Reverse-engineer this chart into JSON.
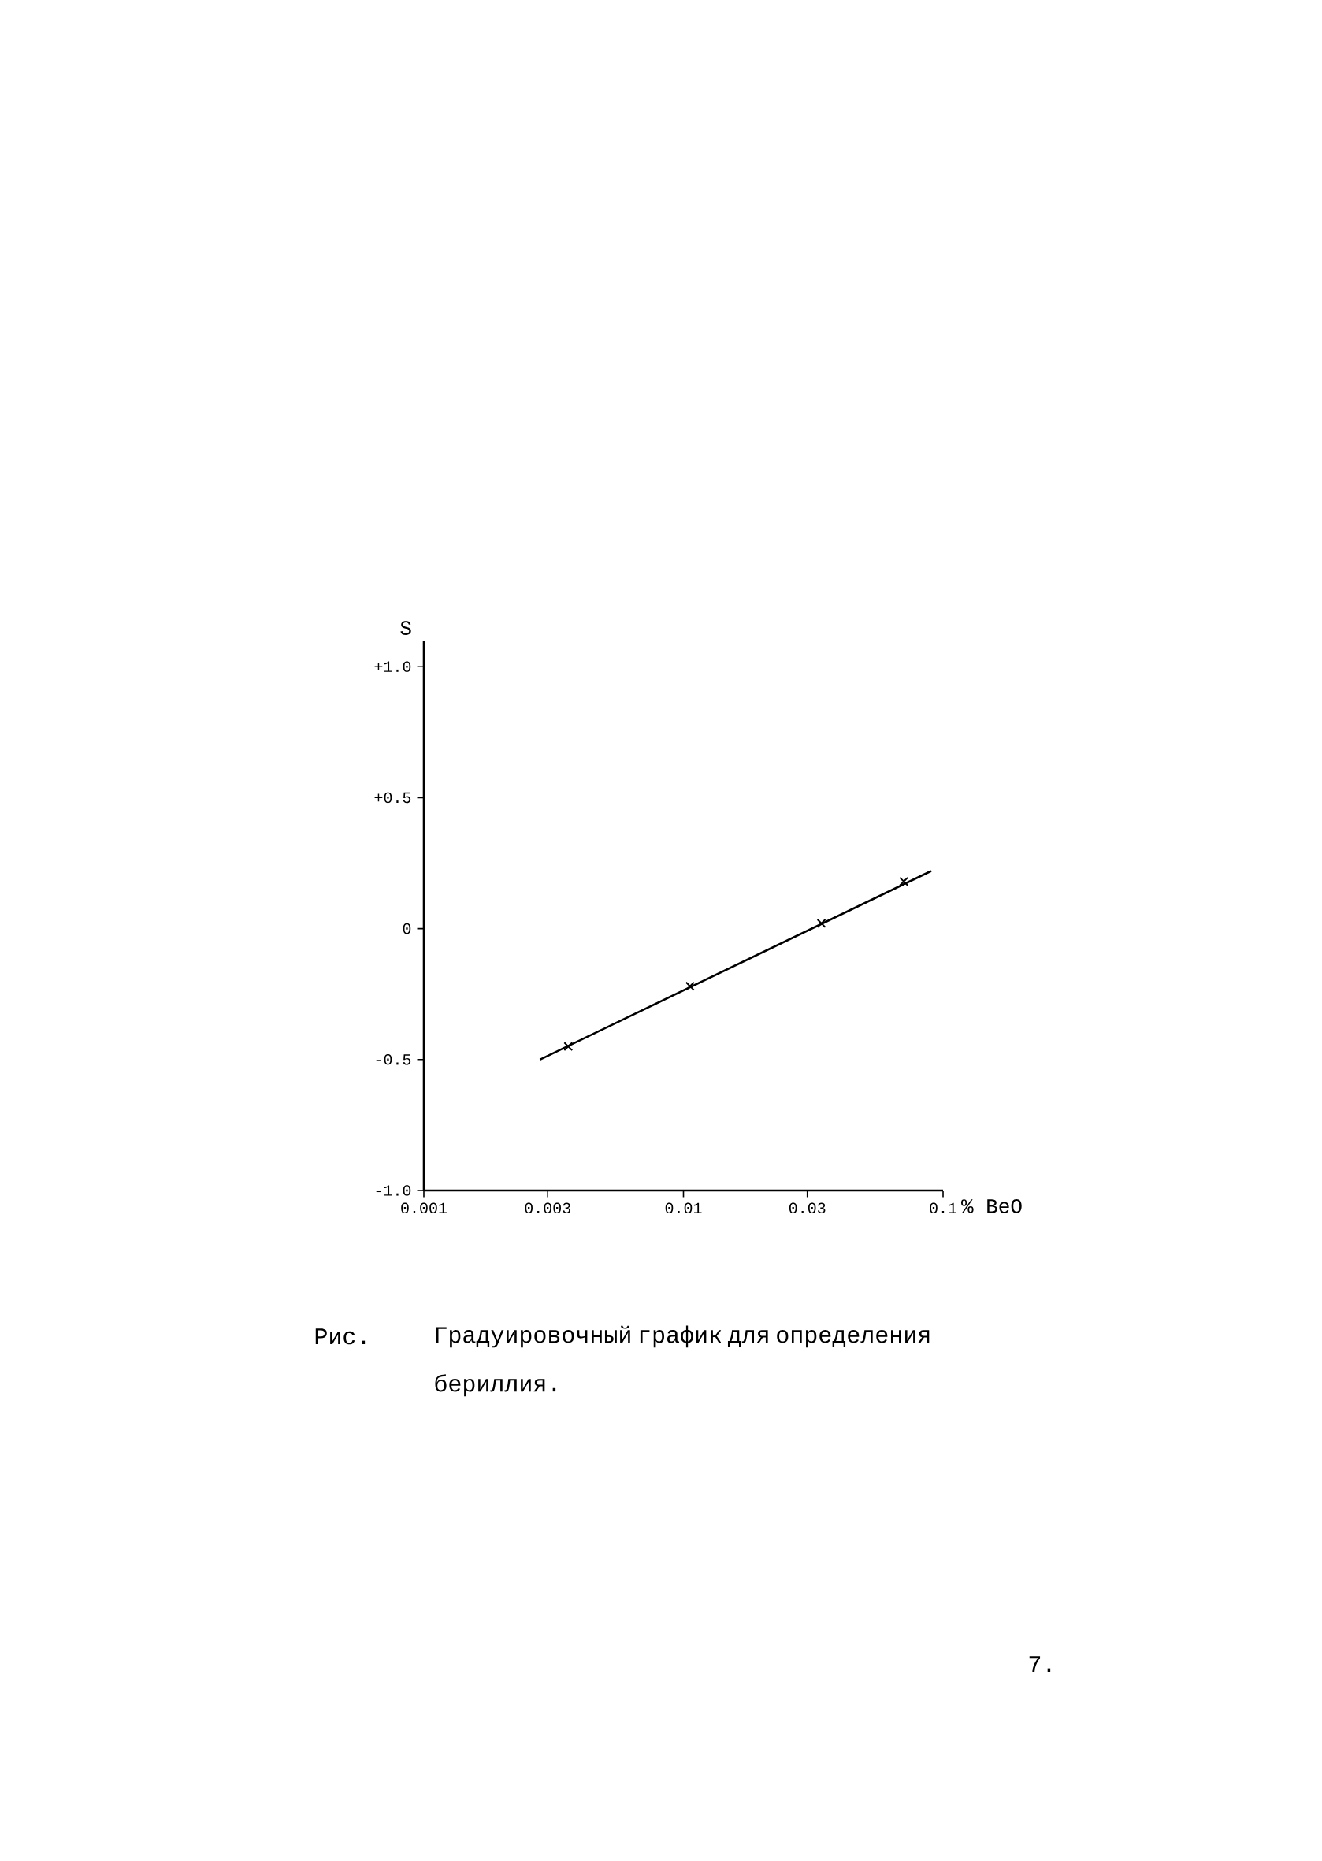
{
  "chart_data": {
    "type": "scatter",
    "xlabel": "% BeO",
    "ylabel": "S",
    "log": "x",
    "marker": "cross",
    "xlim": [
      0.001,
      0.1
    ],
    "ylim": [
      -1.0,
      1.1
    ],
    "xticks": [
      0.001,
      0.003,
      0.01,
      0.03,
      0.1
    ],
    "yticks": [
      {
        "value": -1.0,
        "label": "-1.0"
      },
      {
        "value": -0.5,
        "label": "-0.5"
      },
      {
        "value": 0,
        "label": "0"
      },
      {
        "value": 0.5,
        "label": "+0.5"
      },
      {
        "value": 1.0,
        "label": "+1.0"
      }
    ],
    "series": [
      {
        "type": "line",
        "marker": "none",
        "color": "#000000",
        "x": [
          0.0028,
          0.09
        ],
        "values": [
          -0.5,
          0.22
        ]
      },
      {
        "color": "#000000",
        "x": [
          0.0036,
          0.0106,
          0.034,
          0.0706
        ],
        "values": [
          -0.45,
          -0.22,
          0.02,
          0.18
        ]
      }
    ],
    "annotations": [
      "Рис.",
      "Градуировочный график для определения бериллия.",
      "7."
    ]
  }
}
